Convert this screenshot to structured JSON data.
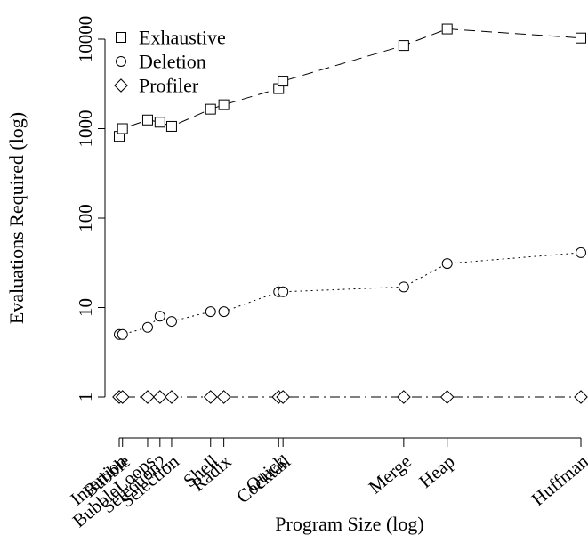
{
  "chart_data": {
    "type": "line",
    "xlabel": "Program Size (log)",
    "ylabel": "Evaluations Required (log)",
    "yscale": "log",
    "xscale": "log",
    "ylim": [
      1,
      10000
    ],
    "y_ticks": [
      {
        "value": 1,
        "label": "1"
      },
      {
        "value": 10,
        "label": "10"
      },
      {
        "value": 100,
        "label": "100"
      },
      {
        "value": 1000,
        "label": "1000"
      },
      {
        "value": 10000,
        "label": "10000"
      }
    ],
    "x_ticks": [
      {
        "x": 1.0,
        "label": "Insertion"
      },
      {
        "x": 1.04,
        "label": "Bubble"
      },
      {
        "x": 1.4,
        "label": "BubbleLoops"
      },
      {
        "x": 1.62,
        "label": "Selection2"
      },
      {
        "x": 1.86,
        "label": "Selection"
      },
      {
        "x": 2.95,
        "label": "Shell"
      },
      {
        "x": 3.45,
        "label": "Radix"
      },
      {
        "x": 6.6,
        "label": "Quick"
      },
      {
        "x": 6.95,
        "label": "Cocktail"
      },
      {
        "x": 29.0,
        "label": "Merge"
      },
      {
        "x": 48.5,
        "label": "Heap"
      },
      {
        "x": 236.0,
        "label": "Huffman"
      }
    ],
    "series": [
      {
        "name": "Exhaustive",
        "marker": "square",
        "dash": "dashed",
        "x": [
          1.0,
          1.04,
          1.4,
          1.62,
          1.86,
          2.95,
          3.45,
          6.6,
          6.95,
          29.0,
          48.5,
          236.0
        ],
        "values": [
          820,
          1000,
          1250,
          1180,
          1060,
          1650,
          1850,
          2800,
          3400,
          8500,
          13000,
          10300
        ]
      },
      {
        "name": "Deletion",
        "marker": "circle",
        "dash": "dotted",
        "x": [
          1.0,
          1.04,
          1.4,
          1.62,
          1.86,
          2.95,
          3.45,
          6.6,
          6.95,
          29.0,
          48.5,
          236.0
        ],
        "values": [
          5,
          5,
          6,
          8,
          7,
          9,
          9,
          15,
          15,
          17,
          31,
          41
        ]
      },
      {
        "name": "Profiler",
        "marker": "diamond",
        "dash": "dashdot",
        "x": [
          1.0,
          1.04,
          1.4,
          1.62,
          1.86,
          2.95,
          3.45,
          6.6,
          6.95,
          29.0,
          48.5,
          236.0
        ],
        "values": [
          1,
          1,
          1,
          1,
          1,
          1,
          1,
          1,
          1,
          1,
          1,
          1
        ]
      }
    ],
    "legend_position": "top-left",
    "grid": false
  }
}
